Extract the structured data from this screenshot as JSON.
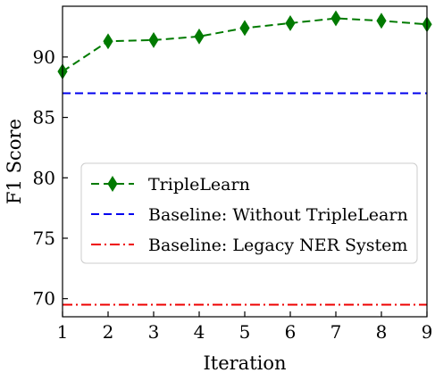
{
  "chart_data": {
    "type": "line",
    "xlabel": "Iteration",
    "ylabel": "F1 Score",
    "x": [
      1,
      2,
      3,
      4,
      5,
      6,
      7,
      8,
      9
    ],
    "xlim": [
      1,
      9
    ],
    "ylim": [
      68.5,
      94.2
    ],
    "x_ticks": [
      1,
      2,
      3,
      4,
      5,
      6,
      7,
      8,
      9
    ],
    "y_ticks": [
      70,
      75,
      80,
      85,
      90
    ],
    "grid": false,
    "legend_position": "center-left",
    "series": [
      {
        "name": "TripleLearn",
        "values": [
          88.8,
          91.3,
          91.4,
          91.7,
          92.4,
          92.8,
          93.2,
          93.0,
          92.7
        ],
        "color": "#007a00",
        "line_style": "dashed",
        "marker": "diamond"
      },
      {
        "name": "Baseline: Without TripleLearn",
        "values": [
          87.0,
          87.0,
          87.0,
          87.0,
          87.0,
          87.0,
          87.0,
          87.0,
          87.0
        ],
        "color": "#0000ee",
        "line_style": "dashed",
        "marker": "none"
      },
      {
        "name": "Baseline: Legacy NER System",
        "values": [
          69.5,
          69.5,
          69.5,
          69.5,
          69.5,
          69.5,
          69.5,
          69.5,
          69.5
        ],
        "color": "#ee0000",
        "line_style": "dashdot",
        "marker": "none"
      }
    ]
  }
}
